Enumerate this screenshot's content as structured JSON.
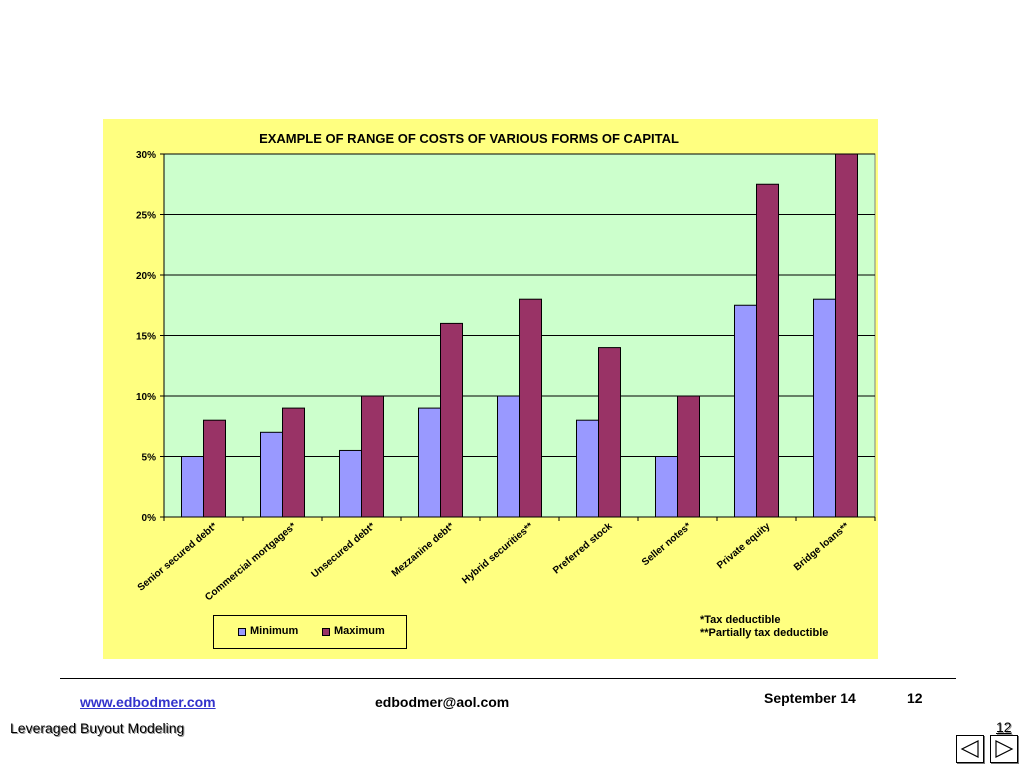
{
  "chart_data": {
    "type": "bar",
    "title": "EXAMPLE OF RANGE OF COSTS OF VARIOUS FORMS OF CAPITAL",
    "categories": [
      "Senior secured debt*",
      "Commercial mortgages*",
      "Unsecured debt*",
      "Mezzanine debt*",
      "Hybrid securities**",
      "Preferred stock",
      "Seller notes*",
      "Private equity",
      "Bridge loans**"
    ],
    "series": [
      {
        "name": "Minimum",
        "color": "#9999ff",
        "values": [
          5,
          7,
          5.5,
          9,
          10,
          8,
          5,
          17.5,
          18
        ]
      },
      {
        "name": "Maximum",
        "color": "#993366",
        "values": [
          8,
          9,
          10,
          16,
          18,
          14,
          10,
          27.5,
          30
        ]
      }
    ],
    "y_ticks": [
      "0%",
      "5%",
      "10%",
      "15%",
      "20%",
      "25%",
      "30%"
    ],
    "ylim": [
      0,
      30
    ],
    "grid": true,
    "plot_background": "#ccffcc",
    "panel_background": "#ffff80",
    "legend": {
      "placement": "bottom-left",
      "entries": [
        "Minimum",
        "Maximum"
      ]
    },
    "notes": [
      "*Tax deductible",
      "**Partially tax deductible"
    ]
  },
  "footer": {
    "website": "www.edbodmer.com",
    "email": "edbodmer@aol.com",
    "date": "September 14",
    "page_number": "12",
    "title": "Leveraged Buyout Modeling",
    "slide_number": "12"
  }
}
